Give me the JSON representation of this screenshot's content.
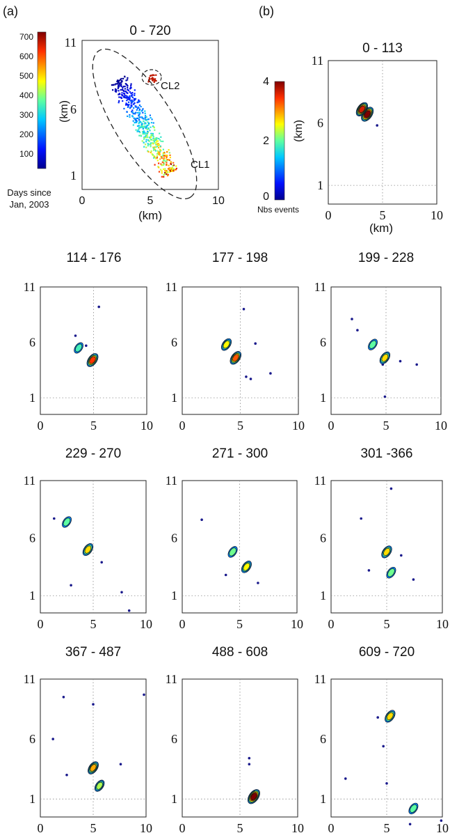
{
  "panel_labels": {
    "a": "(a)",
    "b": "(b)"
  },
  "scatter": {
    "title": "0 - 720",
    "xlabel": "(km)",
    "ylabel": "(km)",
    "xticks": [
      "0",
      "5",
      "10"
    ],
    "yticks": [
      "11",
      "6",
      "1"
    ],
    "cluster_labels": [
      "CL2",
      "CL1"
    ],
    "colorbar": {
      "ticks": [
        "700",
        "600",
        "500",
        "400",
        "300",
        "200",
        "100"
      ],
      "caption_line1": "Days since",
      "caption_line2": "Jan, 2003"
    }
  },
  "density": {
    "colorbar": {
      "ticks": [
        "4",
        "2",
        "0"
      ],
      "caption": "Nbs events"
    },
    "xlabel": "(km)",
    "xticks": [
      "0",
      "5",
      "10"
    ],
    "yticks": [
      "11",
      "6",
      "1"
    ]
  },
  "colors": {
    "cold": "#1a1a8c",
    "cyan": "#2ec4d6",
    "yellow": "#f2e01a",
    "red": "#d41a12",
    "dark_red": "#8a0000"
  },
  "chart_data": [
    {
      "type": "scatter",
      "title": "0 - 720",
      "xlabel": "(km)",
      "ylabel": "(km)",
      "xlim": [
        0,
        10
      ],
      "ylim": [
        -0.5,
        11
      ],
      "color_scale": {
        "label": "Days since Jan, 2003",
        "range": [
          0,
          720
        ]
      },
      "annotations": [
        {
          "text": "CL2",
          "x": 5.3,
          "y": 7.9
        },
        {
          "text": "CL1",
          "x": 8.2,
          "y": 1.8
        }
      ],
      "clusters": [
        {
          "name": "CL1",
          "center": [
            4.4,
            4.6
          ],
          "extent": [
            2,
            6
          ],
          "value_range": [
            0,
            720
          ]
        },
        {
          "name": "CL2",
          "center": [
            5.1,
            8.1
          ],
          "extent": [
            0.6,
            0.6
          ],
          "value_range": [
            609,
            720
          ]
        }
      ]
    },
    {
      "type": "heatmap",
      "subtype": "density-contour",
      "color_scale": {
        "label": "Nbs events",
        "range": [
          0,
          4
        ]
      },
      "xlim": [
        0,
        10
      ],
      "ylim": [
        -0.5,
        11
      ],
      "periods": [
        {
          "title": "0 - 113",
          "blobs": [
            [
              3.6,
              6.7,
              4
            ],
            [
              3.1,
              7.1,
              3.5
            ]
          ],
          "dots": [
            [
              4.5,
              5.8
            ]
          ]
        },
        {
          "title": "114 - 176",
          "blobs": [
            [
              4.9,
              4.4,
              3.2
            ],
            [
              3.6,
              5.5,
              1
            ]
          ],
          "dots": [
            [
              3.3,
              6.6
            ],
            [
              5.5,
              9.2
            ],
            [
              4.3,
              5.7
            ]
          ]
        },
        {
          "title": "177 - 198",
          "blobs": [
            [
              4.6,
              4.6,
              3
            ],
            [
              3.8,
              5.8,
              2
            ]
          ],
          "dots": [
            [
              5.3,
              9
            ],
            [
              7.6,
              3.2
            ],
            [
              6.3,
              5.9
            ],
            [
              5.9,
              2.7
            ],
            [
              5.5,
              2.9
            ]
          ]
        },
        {
          "title": "199 - 228",
          "blobs": [
            [
              4.9,
              4.6,
              2.2
            ],
            [
              3.8,
              5.8,
              1.2
            ]
          ],
          "dots": [
            [
              1.9,
              8.1
            ],
            [
              2.4,
              7.1
            ],
            [
              4.9,
              1.1
            ],
            [
              6.3,
              4.3
            ],
            [
              7.8,
              4
            ],
            [
              4.7,
              4
            ]
          ]
        },
        {
          "title": "229 - 270",
          "blobs": [
            [
              4.5,
              5,
              2.2
            ],
            [
              2.5,
              7.4,
              1.2
            ]
          ],
          "dots": [
            [
              1.3,
              7.7
            ],
            [
              2.9,
              1.9
            ],
            [
              5.8,
              3.9
            ],
            [
              7.7,
              1.3
            ],
            [
              8.4,
              -0.3
            ]
          ]
        },
        {
          "title": "271 - 300",
          "blobs": [
            [
              5.6,
              3.5,
              2
            ],
            [
              4.4,
              4.8,
              1.3
            ]
          ],
          "dots": [
            [
              1.7,
              7.6
            ],
            [
              3.8,
              2.8
            ],
            [
              6.6,
              2.1
            ]
          ]
        },
        {
          "title": "301 -366",
          "blobs": [
            [
              5,
              4.8,
              2.2
            ],
            [
              5.4,
              3,
              1.3
            ]
          ],
          "dots": [
            [
              5.4,
              10.3
            ],
            [
              2.7,
              7.7
            ],
            [
              6.3,
              4.5
            ],
            [
              7.4,
              2.4
            ],
            [
              3.4,
              3.2
            ]
          ]
        },
        {
          "title": "367 - 487",
          "blobs": [
            [
              5,
              3.6,
              2.5
            ],
            [
              5.6,
              2.1,
              1.6
            ]
          ],
          "dots": [
            [
              2.2,
              9.5
            ],
            [
              9.8,
              9.7
            ],
            [
              5,
              8.9
            ],
            [
              7.6,
              3.9
            ],
            [
              2.5,
              3
            ],
            [
              1.2,
              6
            ]
          ]
        },
        {
          "title": "488 - 608",
          "blobs": [
            [
              6.2,
              1.2,
              4
            ]
          ],
          "dots": [
            [
              5.8,
              3.9
            ],
            [
              5.8,
              4.4
            ]
          ]
        },
        {
          "title": "609 - 720",
          "blobs": [
            [
              5.3,
              7.9,
              2.2
            ],
            [
              7.4,
              0.2,
              1.2
            ]
          ],
          "dots": [
            [
              4.2,
              7.8
            ],
            [
              1.3,
              2.7
            ],
            [
              5,
              2.3
            ],
            [
              9.9,
              -0.8
            ],
            [
              7.1,
              -1.1
            ],
            [
              4.7,
              5.4
            ]
          ]
        }
      ]
    }
  ]
}
